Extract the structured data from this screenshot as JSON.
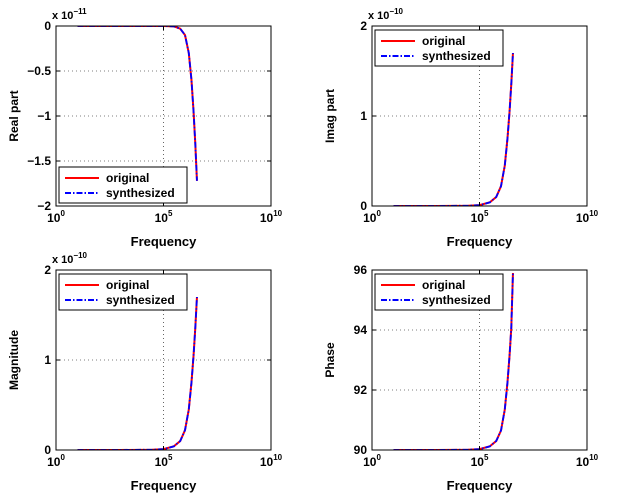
{
  "chart_data": [
    {
      "type": "line",
      "xlabel": "Frequency",
      "ylabel": "Real part",
      "xscale": "log",
      "xlim": [
        1,
        10000000000
      ],
      "ylim": [
        -2,
        0
      ],
      "multiplier": "x 10",
      "exponent": "−11",
      "xticks": [
        {
          "base": "10",
          "exp": "0",
          "v": 1
        },
        {
          "base": "10",
          "exp": "5",
          "v": 100000
        },
        {
          "base": "10",
          "exp": "10",
          "v": 10000000000
        }
      ],
      "yticks": [
        {
          "label": "−2",
          "v": -2
        },
        {
          "label": "−1.5",
          "v": -1.5
        },
        {
          "label": "−1",
          "v": -1
        },
        {
          "label": "−0.5",
          "v": -0.5
        },
        {
          "label": "0",
          "v": 0
        }
      ],
      "grid": true,
      "legend_position": "bottom-left",
      "series": [
        {
          "name": "original",
          "color": "#ff0000",
          "style": "solid",
          "x": [
            10,
            1000,
            100000,
            300000,
            600000,
            1000000,
            1500000,
            2000000,
            2500000,
            3000000,
            3600000
          ],
          "y": [
            0,
            0,
            0,
            -0.004,
            -0.03,
            -0.1,
            -0.3,
            -0.6,
            -0.95,
            -1.3,
            -1.72
          ]
        },
        {
          "name": "synthesized",
          "color": "#0000ff",
          "style": "dashdot",
          "x": [
            10,
            1000,
            100000,
            300000,
            600000,
            1000000,
            1500000,
            2000000,
            2500000,
            3000000,
            3600000
          ],
          "y": [
            0,
            0,
            0,
            -0.004,
            -0.03,
            -0.1,
            -0.3,
            -0.6,
            -0.95,
            -1.3,
            -1.72
          ]
        }
      ]
    },
    {
      "type": "line",
      "xlabel": "Frequency",
      "ylabel": "Imag part",
      "xscale": "log",
      "xlim": [
        1,
        10000000000
      ],
      "ylim": [
        0,
        2
      ],
      "multiplier": "x 10",
      "exponent": "−10",
      "xticks": [
        {
          "base": "10",
          "exp": "0",
          "v": 1
        },
        {
          "base": "10",
          "exp": "5",
          "v": 100000
        },
        {
          "base": "10",
          "exp": "10",
          "v": 10000000000
        }
      ],
      "yticks": [
        {
          "label": "0",
          "v": 0
        },
        {
          "label": "1",
          "v": 1
        },
        {
          "label": "2",
          "v": 2
        }
      ],
      "grid": true,
      "legend_position": "top-left",
      "series": [
        {
          "name": "original",
          "color": "#ff0000",
          "style": "solid",
          "x": [
            10,
            1000,
            30000,
            100000,
            300000,
            600000,
            1000000,
            1500000,
            2000000,
            2500000,
            3000000,
            3600000
          ],
          "y": [
            0,
            0,
            0.003,
            0.01,
            0.04,
            0.1,
            0.22,
            0.45,
            0.75,
            1.05,
            1.35,
            1.7
          ]
        },
        {
          "name": "synthesized",
          "color": "#0000ff",
          "style": "dashdot",
          "x": [
            10,
            1000,
            30000,
            100000,
            300000,
            600000,
            1000000,
            1500000,
            2000000,
            2500000,
            3000000,
            3600000
          ],
          "y": [
            0,
            0,
            0.003,
            0.01,
            0.04,
            0.1,
            0.22,
            0.45,
            0.75,
            1.05,
            1.35,
            1.7
          ]
        }
      ]
    },
    {
      "type": "line",
      "xlabel": "Frequency",
      "ylabel": "Magnitude",
      "xscale": "log",
      "xlim": [
        1,
        10000000000
      ],
      "ylim": [
        0,
        2
      ],
      "multiplier": "x 10",
      "exponent": "−10",
      "xticks": [
        {
          "base": "10",
          "exp": "0",
          "v": 1
        },
        {
          "base": "10",
          "exp": "5",
          "v": 100000
        },
        {
          "base": "10",
          "exp": "10",
          "v": 10000000000
        }
      ],
      "yticks": [
        {
          "label": "0",
          "v": 0
        },
        {
          "label": "1",
          "v": 1
        },
        {
          "label": "2",
          "v": 2
        }
      ],
      "grid": true,
      "legend_position": "top-left",
      "series": [
        {
          "name": "original",
          "color": "#ff0000",
          "style": "solid",
          "x": [
            10,
            1000,
            30000,
            100000,
            300000,
            600000,
            1000000,
            1500000,
            2000000,
            2500000,
            3000000,
            3600000
          ],
          "y": [
            0,
            0,
            0.003,
            0.01,
            0.04,
            0.1,
            0.22,
            0.45,
            0.75,
            1.05,
            1.35,
            1.7
          ]
        },
        {
          "name": "synthesized",
          "color": "#0000ff",
          "style": "dashdot",
          "x": [
            10,
            1000,
            30000,
            100000,
            300000,
            600000,
            1000000,
            1500000,
            2000000,
            2500000,
            3000000,
            3600000
          ],
          "y": [
            0,
            0,
            0.003,
            0.01,
            0.04,
            0.1,
            0.22,
            0.45,
            0.75,
            1.05,
            1.35,
            1.7
          ]
        }
      ]
    },
    {
      "type": "line",
      "xlabel": "Frequency",
      "ylabel": "Phase",
      "xscale": "log",
      "xlim": [
        1,
        10000000000
      ],
      "ylim": [
        90,
        96
      ],
      "multiplier": "",
      "exponent": "",
      "xticks": [
        {
          "base": "10",
          "exp": "0",
          "v": 1
        },
        {
          "base": "10",
          "exp": "5",
          "v": 100000
        },
        {
          "base": "10",
          "exp": "10",
          "v": 10000000000
        }
      ],
      "yticks": [
        {
          "label": "90",
          "v": 90
        },
        {
          "label": "92",
          "v": 92
        },
        {
          "label": "94",
          "v": 94
        },
        {
          "label": "96",
          "v": 96
        }
      ],
      "grid": true,
      "legend_position": "top-left",
      "series": [
        {
          "name": "original",
          "color": "#ff0000",
          "style": "solid",
          "x": [
            10,
            1000,
            30000,
            100000,
            300000,
            600000,
            1000000,
            1500000,
            2000000,
            2500000,
            3000000,
            3600000
          ],
          "y": [
            90,
            90,
            90.01,
            90.03,
            90.12,
            90.3,
            90.65,
            91.35,
            92.25,
            93.15,
            94.05,
            95.9
          ]
        },
        {
          "name": "synthesized",
          "color": "#0000ff",
          "style": "dashdot",
          "x": [
            10,
            1000,
            30000,
            100000,
            300000,
            600000,
            1000000,
            1500000,
            2000000,
            2500000,
            3000000,
            3600000
          ],
          "y": [
            90,
            90,
            90.01,
            90.03,
            90.12,
            90.3,
            90.65,
            91.35,
            92.25,
            93.15,
            94.05,
            95.9
          ]
        }
      ]
    }
  ]
}
